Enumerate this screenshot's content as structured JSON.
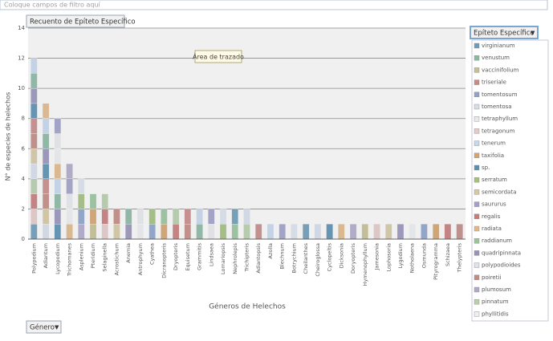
{
  "filter_bar": {
    "placeholder": "Coloque campos de filtro aquí"
  },
  "chart_data": {
    "type": "bar",
    "title": "Recuento de Epíteto Específico",
    "annotation": "Área de trazado",
    "x_label": "Géneros de Helechos",
    "y_label": "N° de especies de helechos",
    "categories": [
      "Polypodium",
      "Adiantum",
      "Lycopodium",
      "Trichomanes",
      "Asplenium",
      "Pteridium",
      "Selaginella",
      "Acrostichum",
      "Anemia",
      "Antrophyum",
      "Cyathea",
      "Dicranopteris",
      "Dryopteris",
      "Equisetum",
      "Grammitis",
      "Lindsaea",
      "Lomariopsis",
      "Nephrolepis",
      "Trichipteris",
      "Adiantopsis",
      "Azolla",
      "Blechnum",
      "Botrychium",
      "Cheilanthes",
      "Cheiroglossa",
      "Cyclopeltis",
      "Dicksonia",
      "Doryopteris",
      "Hymenophyllum",
      "Jamesonia",
      "Lophosoria",
      "Lygodium",
      "Notholaena",
      "Osmunda",
      "Pityrogramma",
      "Schizaea",
      "Thelypteris"
    ],
    "values": [
      12,
      9,
      8,
      5,
      4,
      3,
      3,
      2,
      2,
      2,
      2,
      2,
      2,
      2,
      2,
      2,
      2,
      2,
      2,
      1,
      1,
      1,
      1,
      1,
      1,
      1,
      1,
      1,
      1,
      1,
      1,
      1,
      1,
      1,
      1,
      1,
      1
    ],
    "color": "#a9b8cc",
    "ylim": [
      0,
      14
    ],
    "yticks": [
      0,
      2,
      4,
      6,
      8,
      10,
      12,
      14
    ],
    "grid": true
  },
  "row_field_button": {
    "label": "Género"
  },
  "legend_panel": {
    "title": "Epíteto Específico",
    "items": [
      {
        "name": "virginianum",
        "color": "#6f9bb5"
      },
      {
        "name": "venustum",
        "color": "#8db8a0"
      },
      {
        "name": "vaccinifolium",
        "color": "#c9c08f"
      },
      {
        "name": "triseriale",
        "color": "#c98a86"
      },
      {
        "name": "tomentosum",
        "color": "#8fa3c7"
      },
      {
        "name": "tomentosa",
        "color": "#d8dde8"
      },
      {
        "name": "tetraphyllum",
        "color": "#e9e9e9"
      },
      {
        "name": "tetragonum",
        "color": "#e7c9c6"
      },
      {
        "name": "tenerum",
        "color": "#c9d7ea"
      },
      {
        "name": "taxifolia",
        "color": "#d6a36a"
      },
      {
        "name": "sp.",
        "color": "#5b8fb0"
      },
      {
        "name": "serratum",
        "color": "#a5c07d"
      },
      {
        "name": "semicordata",
        "color": "#d7c8a0"
      },
      {
        "name": "saururus",
        "color": "#a3a0c4"
      },
      {
        "name": "regalis",
        "color": "#c97b78"
      },
      {
        "name": "radiata",
        "color": "#e3b886"
      },
      {
        "name": "raddianum",
        "color": "#9cc49a"
      },
      {
        "name": "quadripinnata",
        "color": "#9a93b8"
      },
      {
        "name": "polypodioides",
        "color": "#dfe3ea"
      },
      {
        "name": "poiretii",
        "color": "#c58a80"
      },
      {
        "name": "plumosum",
        "color": "#b3a9c7"
      },
      {
        "name": "pinnatum",
        "color": "#b9cfa8"
      },
      {
        "name": "phyllitidis",
        "color": "#eeeeee"
      }
    ]
  }
}
